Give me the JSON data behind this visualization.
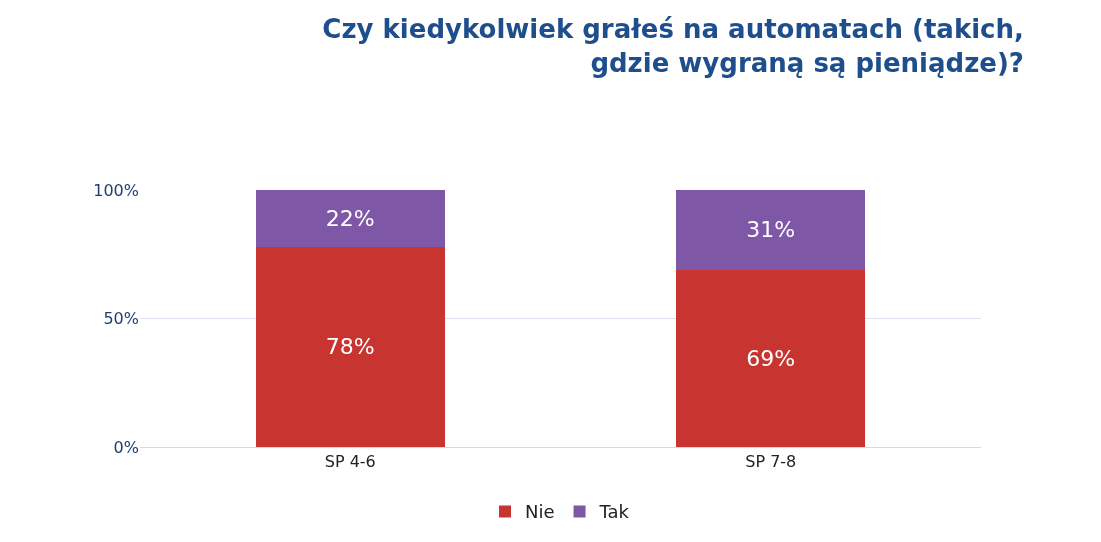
{
  "chart_data": {
    "type": "bar",
    "title": "Czy kiedykolwiek grałeś na automatach (takich,\ngdzie wygraną są pieniądze)?",
    "categories": [
      "SP 4-6",
      "SP 7-8"
    ],
    "stacked": true,
    "series": [
      {
        "name": "Nie",
        "color": "#c8342f",
        "values": [
          78,
          69
        ],
        "value_labels": [
          "78%",
          "69%"
        ]
      },
      {
        "name": "Tak",
        "color": "#7e58a6",
        "values": [
          22,
          31
        ],
        "value_labels": [
          "22%",
          "31%"
        ]
      }
    ],
    "ylim": [
      0,
      100
    ],
    "yticks": [
      {
        "value": 0,
        "label": "0%"
      },
      {
        "value": 50,
        "label": "50%"
      },
      {
        "value": 100,
        "label": "100%"
      }
    ],
    "grid": "y",
    "legend": "bottom"
  }
}
